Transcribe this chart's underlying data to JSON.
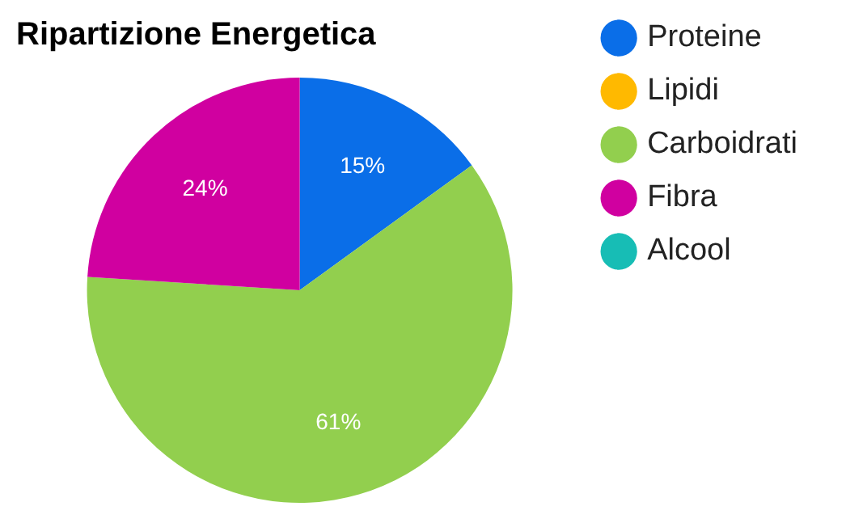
{
  "chart_data": {
    "type": "pie",
    "title": "Ripartizione Energetica",
    "categories": [
      "Proteine",
      "Lipidi",
      "Carboidrati",
      "Fibra",
      "Alcool"
    ],
    "values": [
      15,
      0,
      61,
      24,
      0
    ],
    "colors": [
      "#0a6ee8",
      "#ffb900",
      "#92cf4e",
      "#d000a0",
      "#17bdb5"
    ],
    "value_labels": [
      "15%",
      null,
      "61%",
      "24%",
      null
    ],
    "legend": "right"
  }
}
